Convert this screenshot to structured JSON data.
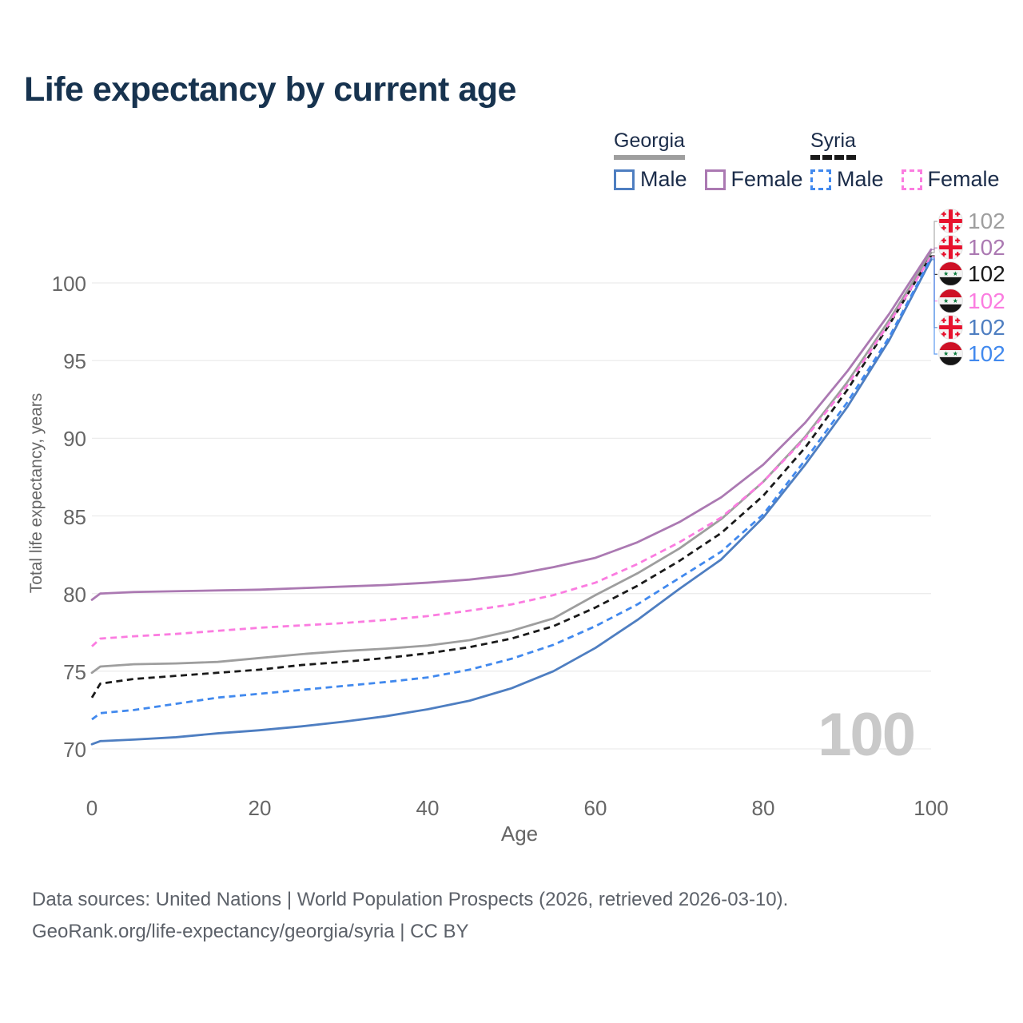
{
  "title": "Life expectancy by current age",
  "legend": {
    "groups": [
      {
        "label": "Georgia",
        "line_style": "solid",
        "underline_color": "#9e9e9e",
        "items": [
          {
            "label": "Male",
            "color": "#4e7ec1"
          },
          {
            "label": "Female",
            "color": "#ab79b2"
          }
        ]
      },
      {
        "label": "Syria",
        "line_style": "dashed",
        "underline_color": "#1a1a1a",
        "items": [
          {
            "label": "Male",
            "color": "#4189ee"
          },
          {
            "label": "Female",
            "color": "#fb7ce0"
          }
        ]
      }
    ]
  },
  "chart_data": {
    "type": "line",
    "title": "Life expectancy by current age",
    "xlabel": "Age",
    "ylabel": "Total life expectancy, years",
    "xlim": [
      0,
      100
    ],
    "ylim": [
      68.5,
      103.5
    ],
    "xticks": [
      0,
      20,
      40,
      60,
      80,
      100
    ],
    "yticks": [
      70,
      75,
      80,
      85,
      90,
      95,
      100
    ],
    "grid": "horizontal",
    "hover_age": "100",
    "x": [
      0,
      1,
      5,
      10,
      15,
      20,
      25,
      30,
      35,
      40,
      45,
      50,
      55,
      60,
      65,
      70,
      75,
      80,
      85,
      90,
      95,
      100
    ],
    "series": [
      {
        "name": "Georgia",
        "country": "Georgia",
        "sex": "both",
        "dashed": false,
        "color": "#9e9e9e",
        "end_label": "102",
        "values": [
          74.9,
          75.3,
          75.45,
          75.5,
          75.6,
          75.85,
          76.1,
          76.3,
          76.45,
          76.65,
          77.0,
          77.6,
          78.4,
          79.9,
          81.3,
          82.9,
          84.8,
          87.2,
          90.1,
          93.6,
          97.6,
          101.95
        ]
      },
      {
        "name": "Georgia Female",
        "country": "Georgia",
        "sex": "female",
        "dashed": false,
        "color": "#ab79b2",
        "end_label": "102",
        "values": [
          79.6,
          80.0,
          80.1,
          80.15,
          80.2,
          80.25,
          80.35,
          80.45,
          80.55,
          80.7,
          80.9,
          81.2,
          81.7,
          82.3,
          83.3,
          84.6,
          86.2,
          88.3,
          91.0,
          94.3,
          98.0,
          102.15
        ]
      },
      {
        "name": "Syria",
        "country": "Syria",
        "sex": "both",
        "dashed": true,
        "color": "#1a1a1a",
        "end_label": "102",
        "values": [
          73.3,
          74.2,
          74.5,
          74.7,
          74.9,
          75.1,
          75.4,
          75.6,
          75.85,
          76.15,
          76.55,
          77.1,
          77.9,
          79.1,
          80.5,
          82.1,
          83.9,
          86.3,
          89.4,
          93.1,
          97.3,
          101.75
        ]
      },
      {
        "name": "Syria Female",
        "country": "Syria",
        "sex": "female",
        "dashed": true,
        "color": "#fb7ce0",
        "end_label": "102",
        "values": [
          76.6,
          77.1,
          77.25,
          77.4,
          77.6,
          77.8,
          77.95,
          78.1,
          78.3,
          78.55,
          78.9,
          79.3,
          79.9,
          80.7,
          81.9,
          83.3,
          84.9,
          87.2,
          90.0,
          93.4,
          97.4,
          101.7
        ]
      },
      {
        "name": "Georgia Male",
        "country": "Georgia",
        "sex": "male",
        "dashed": false,
        "color": "#4e7ec1",
        "end_label": "102",
        "values": [
          70.3,
          70.5,
          70.6,
          70.75,
          71.0,
          71.2,
          71.45,
          71.75,
          72.1,
          72.55,
          73.1,
          73.9,
          75.0,
          76.5,
          78.3,
          80.3,
          82.2,
          84.9,
          88.3,
          92.0,
          96.3,
          101.5
        ]
      },
      {
        "name": "Syria Male",
        "country": "Syria",
        "sex": "male",
        "dashed": true,
        "color": "#4189ee",
        "end_label": "102",
        "values": [
          71.9,
          72.3,
          72.5,
          72.9,
          73.3,
          73.55,
          73.8,
          74.05,
          74.3,
          74.6,
          75.1,
          75.8,
          76.7,
          77.9,
          79.3,
          81.0,
          82.7,
          85.1,
          88.6,
          92.3,
          96.5,
          101.6
        ]
      }
    ]
  },
  "end_labels": [
    {
      "series": "Georgia",
      "flag": "georgia",
      "value": "102",
      "color": "#9e9e9e"
    },
    {
      "series": "Georgia Female",
      "flag": "georgia",
      "value": "102",
      "color": "#ab79b2"
    },
    {
      "series": "Syria",
      "flag": "syria",
      "value": "102",
      "color": "#1a1a1a"
    },
    {
      "series": "Syria Female",
      "flag": "syria",
      "value": "102",
      "color": "#fb7ce0"
    },
    {
      "series": "Georgia Male",
      "flag": "georgia",
      "value": "102",
      "color": "#4e7ec1"
    },
    {
      "series": "Syria Male",
      "flag": "syria",
      "value": "102",
      "color": "#4189ee"
    }
  ],
  "footer": {
    "line1": "Data sources: United Nations | World Population Prospects (2026, retrieved 2026-03-10).",
    "line2": "GeoRank.org/life-expectancy/georgia/syria | CC BY"
  }
}
